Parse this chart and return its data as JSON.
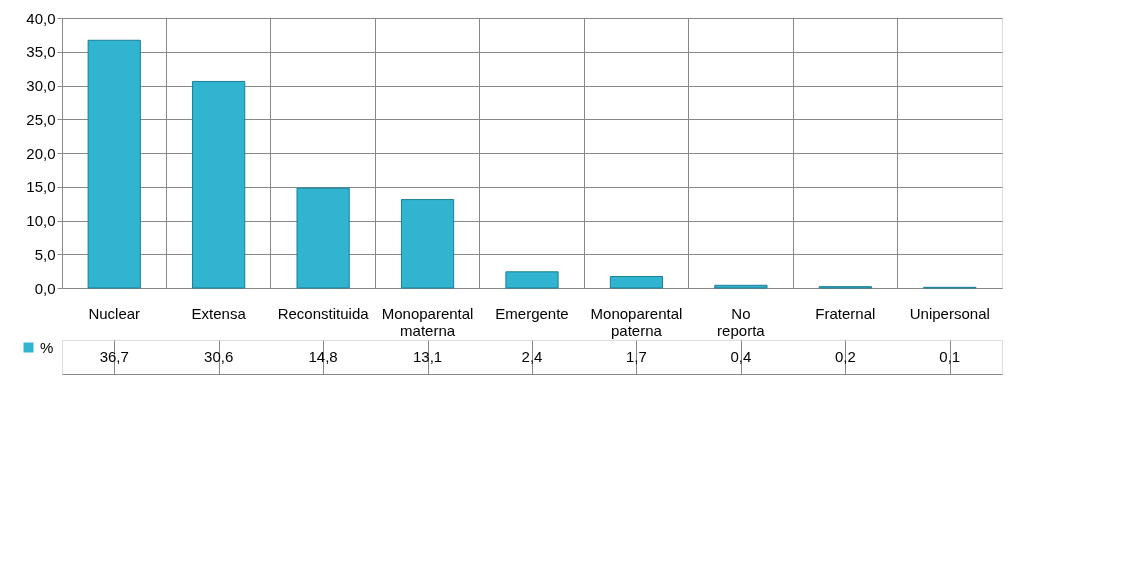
{
  "chart_data": {
    "type": "bar",
    "categories": [
      "Nuclear",
      "Extensa",
      "Reconstituida",
      "Monoparental materna",
      "Emergente",
      "Monoparental paterna",
      "No reporta",
      "Fraternal",
      "Unipersonal"
    ],
    "series": [
      {
        "name": "%",
        "color": "#31b4d0",
        "values": [
          36.7,
          30.6,
          14.8,
          13.1,
          2.4,
          1.7,
          0.4,
          0.2,
          0.1
        ],
        "value_labels": [
          "36,7",
          "30,6",
          "14,8",
          "13,1",
          "2,4",
          "1,7",
          "0,4",
          "0,2",
          "0,1"
        ]
      }
    ],
    "ylim": [
      0,
      40
    ],
    "yticks": [
      {
        "value": 0,
        "label": "0,0"
      },
      {
        "value": 5,
        "label": "5,0"
      },
      {
        "value": 10,
        "label": "10,0"
      },
      {
        "value": 15,
        "label": "15,0"
      },
      {
        "value": 20,
        "label": "20,0"
      },
      {
        "value": 25,
        "label": "25,0"
      },
      {
        "value": 30,
        "label": "30,0"
      },
      {
        "value": 35,
        "label": "35,0"
      },
      {
        "value": 40,
        "label": "40,0"
      }
    ],
    "grid": "y",
    "legend": "bottom left"
  }
}
